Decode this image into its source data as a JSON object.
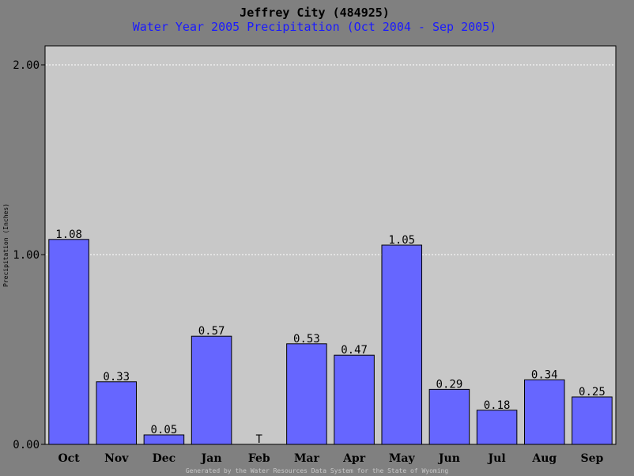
{
  "chart_data": {
    "type": "bar",
    "title": "Jeffrey City (484925)",
    "subtitle": "Water Year 2005 Precipitation (Oct 2004 - Sep 2005)",
    "ylabel": "Precipitation (Inches)",
    "footer": "Generated by the Water Resources Data System for the State of Wyoming",
    "categories": [
      "Oct",
      "Nov",
      "Dec",
      "Jan",
      "Feb",
      "Mar",
      "Apr",
      "May",
      "Jun",
      "Jul",
      "Aug",
      "Sep"
    ],
    "values": [
      1.08,
      0.33,
      0.05,
      0.57,
      0,
      0.53,
      0.47,
      1.05,
      0.29,
      0.18,
      0.34,
      0.25
    ],
    "data_labels": [
      "1.08",
      "0.33",
      "0.05",
      "0.57",
      "T",
      "0.53",
      "0.47",
      "1.05",
      "0.29",
      "0.18",
      "0.34",
      "0.25"
    ],
    "ylim": [
      0,
      2.2
    ],
    "yticks": [
      0,
      1,
      2
    ],
    "ytick_labels": [
      "0.00",
      "1.00",
      "2.00"
    ],
    "grid": true,
    "colors": {
      "background": "#808080",
      "plot_area": "#c8c8c8",
      "bar_fill": "#6666ff",
      "subtitle": "#1a1aff",
      "gridline": "#ffffff"
    }
  }
}
